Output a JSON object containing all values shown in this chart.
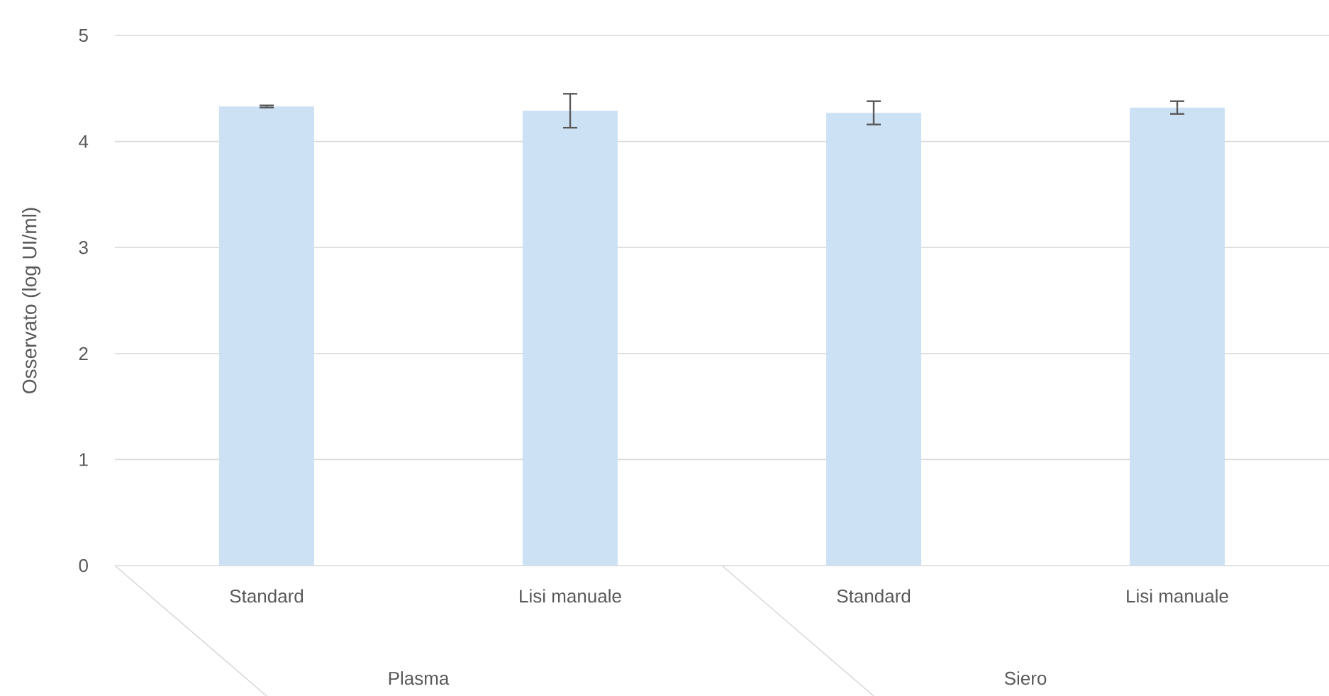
{
  "chart_data": {
    "type": "bar",
    "ylabel": "Osservato (log UI/ml)",
    "categories": [
      "Standard",
      "Lisi manuale",
      "Standard",
      "Lisi manuale"
    ],
    "values": [
      4.33,
      4.29,
      4.27,
      4.32
    ],
    "errors": [
      0.01,
      0.16,
      0.11,
      0.06
    ],
    "color": "#cce1f4",
    "ylim": [
      0,
      5
    ],
    "yticks": [
      0,
      1,
      2,
      3,
      4,
      5
    ],
    "grid": "y",
    "annotations": [
      "Plasma",
      "Siero"
    ]
  }
}
